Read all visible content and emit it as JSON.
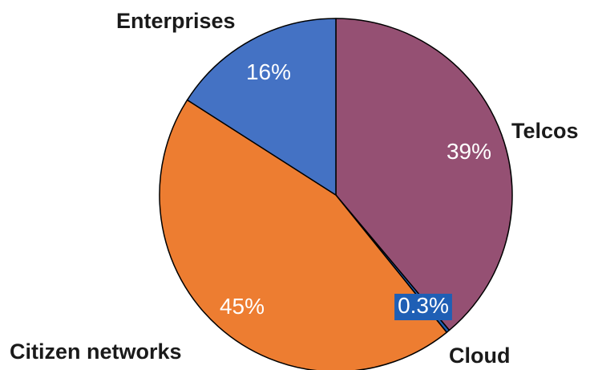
{
  "chart_data": {
    "type": "pie",
    "title": "",
    "slices": [
      {
        "label": "Telcos",
        "value": 39,
        "value_label": "39%",
        "color": "#955073"
      },
      {
        "label": "Cloud",
        "value": 0.3,
        "value_label": "0.3%",
        "color": "#1f5fb5"
      },
      {
        "label": "Citizen networks",
        "value": 45,
        "value_label": "45%",
        "color": "#ed7d31"
      },
      {
        "label": "Enterprises",
        "value": 16,
        "value_label": "16%",
        "color": "#4472c4"
      }
    ]
  }
}
